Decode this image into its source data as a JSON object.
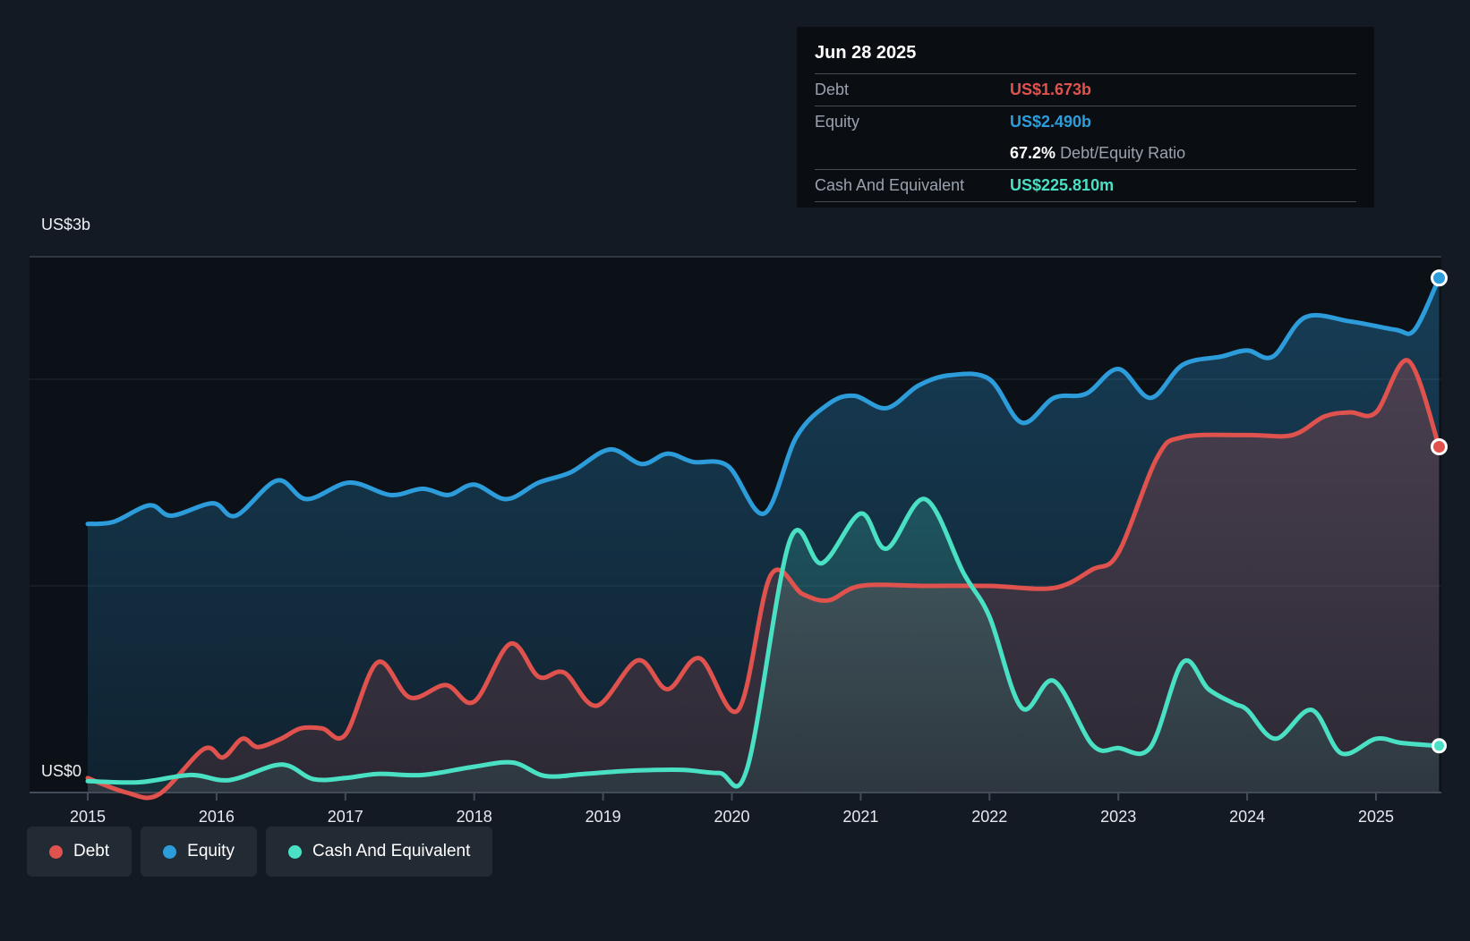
{
  "colors": {
    "page_bg": "#141a24",
    "plot_bg": "#0c1118",
    "tooltip_bg": "#0a0e13",
    "legend_bg": "#222a34",
    "grid_strong": "#3a424e",
    "grid_faint": "rgba(150,170,190,0.14)",
    "axis": "#434c58",
    "debt": "#e0524d",
    "equity": "#2d9cdb",
    "cash": "#4ae0c3"
  },
  "tooltip": {
    "date": "Jun 28 2025",
    "rows": [
      {
        "id": "debt",
        "label": "Debt",
        "value": "US$1.673b"
      },
      {
        "id": "equity",
        "label": "Equity",
        "value": "US$2.490b"
      },
      {
        "id": "cash",
        "label": "Cash And Equivalent",
        "value": "US$225.810m"
      }
    ],
    "ratio": {
      "value": "67.2%",
      "label": "Debt/Equity Ratio"
    }
  },
  "legend": {
    "items": [
      {
        "id": "debt",
        "label": "Debt"
      },
      {
        "id": "equity",
        "label": "Equity"
      },
      {
        "id": "cash",
        "label": "Cash And Equivalent"
      }
    ]
  },
  "chart_data": {
    "type": "area",
    "x_ticks": [
      "2015",
      "2016",
      "2017",
      "2018",
      "2019",
      "2020",
      "2021",
      "2022",
      "2023",
      "2024",
      "2025"
    ],
    "y_axis": {
      "top_label": "US$3b",
      "bottom_label": "US$0",
      "ylim": [
        0,
        3
      ],
      "unit": "US$ billions",
      "gridline_values": [
        1,
        2
      ],
      "grid": true,
      "legend_position": "bottom-left"
    },
    "x_range": [
      2015.0,
      2025.49
    ],
    "series": [
      {
        "id": "equity",
        "name": "Equity",
        "color": "#2d9cdb",
        "points": [
          [
            2015.0,
            1.3
          ],
          [
            2015.2,
            1.31
          ],
          [
            2015.48,
            1.39
          ],
          [
            2015.65,
            1.34
          ],
          [
            2015.97,
            1.4
          ],
          [
            2016.15,
            1.34
          ],
          [
            2016.47,
            1.51
          ],
          [
            2016.7,
            1.42
          ],
          [
            2017.03,
            1.5
          ],
          [
            2017.35,
            1.44
          ],
          [
            2017.6,
            1.47
          ],
          [
            2017.8,
            1.44
          ],
          [
            2018.0,
            1.49
          ],
          [
            2018.25,
            1.42
          ],
          [
            2018.5,
            1.5
          ],
          [
            2018.75,
            1.55
          ],
          [
            2019.05,
            1.66
          ],
          [
            2019.3,
            1.59
          ],
          [
            2019.5,
            1.64
          ],
          [
            2019.7,
            1.6
          ],
          [
            2019.97,
            1.58
          ],
          [
            2020.25,
            1.35
          ],
          [
            2020.5,
            1.72
          ],
          [
            2020.75,
            1.88
          ],
          [
            2020.95,
            1.92
          ],
          [
            2021.2,
            1.86
          ],
          [
            2021.45,
            1.97
          ],
          [
            2021.7,
            2.02
          ],
          [
            2022.0,
            2.0
          ],
          [
            2022.25,
            1.79
          ],
          [
            2022.5,
            1.91
          ],
          [
            2022.75,
            1.93
          ],
          [
            2023.0,
            2.05
          ],
          [
            2023.25,
            1.91
          ],
          [
            2023.5,
            2.07
          ],
          [
            2023.8,
            2.11
          ],
          [
            2024.0,
            2.14
          ],
          [
            2024.2,
            2.11
          ],
          [
            2024.45,
            2.3
          ],
          [
            2024.8,
            2.28
          ],
          [
            2025.15,
            2.24
          ],
          [
            2025.3,
            2.24
          ],
          [
            2025.49,
            2.49
          ]
        ]
      },
      {
        "id": "debt",
        "name": "Debt",
        "color": "#e0524d",
        "points": [
          [
            2015.0,
            0.07
          ],
          [
            2015.3,
            0.0
          ],
          [
            2015.55,
            -0.01
          ],
          [
            2015.9,
            0.21
          ],
          [
            2016.05,
            0.17
          ],
          [
            2016.2,
            0.26
          ],
          [
            2016.32,
            0.22
          ],
          [
            2016.5,
            0.26
          ],
          [
            2016.65,
            0.31
          ],
          [
            2016.82,
            0.31
          ],
          [
            2017.0,
            0.28
          ],
          [
            2017.25,
            0.63
          ],
          [
            2017.5,
            0.46
          ],
          [
            2017.78,
            0.52
          ],
          [
            2018.0,
            0.44
          ],
          [
            2018.28,
            0.72
          ],
          [
            2018.5,
            0.56
          ],
          [
            2018.7,
            0.58
          ],
          [
            2018.95,
            0.42
          ],
          [
            2019.27,
            0.64
          ],
          [
            2019.5,
            0.5
          ],
          [
            2019.75,
            0.65
          ],
          [
            2020.05,
            0.4
          ],
          [
            2020.3,
            1.05
          ],
          [
            2020.55,
            0.96
          ],
          [
            2020.75,
            0.93
          ],
          [
            2021.0,
            1.0
          ],
          [
            2021.5,
            1.0
          ],
          [
            2022.0,
            1.0
          ],
          [
            2022.5,
            0.99
          ],
          [
            2022.8,
            1.08
          ],
          [
            2023.0,
            1.16
          ],
          [
            2023.3,
            1.62
          ],
          [
            2023.5,
            1.72
          ],
          [
            2024.0,
            1.73
          ],
          [
            2024.35,
            1.73
          ],
          [
            2024.6,
            1.82
          ],
          [
            2024.8,
            1.84
          ],
          [
            2025.0,
            1.84
          ],
          [
            2025.25,
            2.09
          ],
          [
            2025.49,
            1.673
          ]
        ]
      },
      {
        "id": "cash",
        "name": "Cash And Equivalent",
        "color": "#4ae0c3",
        "points": [
          [
            2015.0,
            0.055
          ],
          [
            2015.4,
            0.05
          ],
          [
            2015.8,
            0.085
          ],
          [
            2016.1,
            0.06
          ],
          [
            2016.5,
            0.135
          ],
          [
            2016.75,
            0.065
          ],
          [
            2017.0,
            0.07
          ],
          [
            2017.25,
            0.09
          ],
          [
            2017.6,
            0.085
          ],
          [
            2018.0,
            0.125
          ],
          [
            2018.3,
            0.145
          ],
          [
            2018.55,
            0.08
          ],
          [
            2018.85,
            0.09
          ],
          [
            2019.2,
            0.105
          ],
          [
            2019.6,
            0.11
          ],
          [
            2019.9,
            0.095
          ],
          [
            2020.12,
            0.12
          ],
          [
            2020.45,
            1.22
          ],
          [
            2020.7,
            1.11
          ],
          [
            2021.0,
            1.35
          ],
          [
            2021.2,
            1.18
          ],
          [
            2021.5,
            1.42
          ],
          [
            2021.8,
            1.06
          ],
          [
            2022.0,
            0.85
          ],
          [
            2022.25,
            0.41
          ],
          [
            2022.5,
            0.54
          ],
          [
            2022.8,
            0.23
          ],
          [
            2023.0,
            0.215
          ],
          [
            2023.25,
            0.22
          ],
          [
            2023.5,
            0.63
          ],
          [
            2023.7,
            0.5
          ],
          [
            2023.9,
            0.43
          ],
          [
            2024.0,
            0.4
          ],
          [
            2024.22,
            0.26
          ],
          [
            2024.5,
            0.4
          ],
          [
            2024.73,
            0.19
          ],
          [
            2025.0,
            0.26
          ],
          [
            2025.2,
            0.24
          ],
          [
            2025.49,
            0.226
          ]
        ]
      }
    ]
  }
}
